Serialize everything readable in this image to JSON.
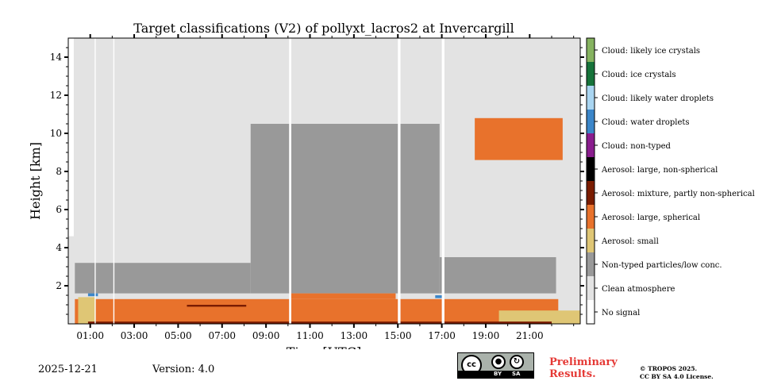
{
  "chart_data": {
    "type": "heatmap",
    "title": "Target classifications (V2) of pollyxt_lacros2 at Invercargill",
    "xlabel": "Time [UTC]",
    "ylabel": "Height [km]",
    "x_unit": "hours UTC",
    "xlim": [
      0,
      23.3
    ],
    "ylim": [
      0,
      15
    ],
    "xticks": [
      {
        "value": 1,
        "label": "01:00"
      },
      {
        "value": 3,
        "label": "03:00"
      },
      {
        "value": 5,
        "label": "05:00"
      },
      {
        "value": 7,
        "label": "07:00"
      },
      {
        "value": 9,
        "label": "09:00"
      },
      {
        "value": 11,
        "label": "11:00"
      },
      {
        "value": 13,
        "label": "13:00"
      },
      {
        "value": 15,
        "label": "15:00"
      },
      {
        "value": 17,
        "label": "17:00"
      },
      {
        "value": 19,
        "label": "19:00"
      },
      {
        "value": 21,
        "label": "21:00"
      }
    ],
    "yticks": [
      {
        "value": 2,
        "label": "2"
      },
      {
        "value": 4,
        "label": "4"
      },
      {
        "value": 6,
        "label": "6"
      },
      {
        "value": 8,
        "label": "8"
      },
      {
        "value": 10,
        "label": "10"
      },
      {
        "value": 12,
        "label": "12"
      },
      {
        "value": 14,
        "label": "14"
      }
    ],
    "classes": [
      {
        "code": 0,
        "label": "No signal",
        "color": "#ffffff"
      },
      {
        "code": 1,
        "label": "Clean atmosphere",
        "color": "#e3e3e3"
      },
      {
        "code": 2,
        "label": "Non-typed particles/low conc.",
        "color": "#999999"
      },
      {
        "code": 3,
        "label": "Aerosol: small",
        "color": "#dfc675"
      },
      {
        "code": 4,
        "label": "Aerosol: large, spherical",
        "color": "#e8722c"
      },
      {
        "code": 5,
        "label": "Aerosol: mixture, partly non-spherical",
        "color": "#7a1c00"
      },
      {
        "code": 6,
        "label": "Aerosol: large, non-spherical",
        "color": "#000000"
      },
      {
        "code": 7,
        "label": "Cloud: non-typed",
        "color": "#8a1d8e"
      },
      {
        "code": 8,
        "label": "Cloud: water droplets",
        "color": "#3b86c9"
      },
      {
        "code": 9,
        "label": "Cloud: likely water droplets",
        "color": "#a9d5f1"
      },
      {
        "code": 10,
        "label": "Cloud: ice crystals",
        "color": "#16733a"
      },
      {
        "code": 11,
        "label": "Cloud: likely ice crystals",
        "color": "#86b360"
      }
    ],
    "regions": [
      {
        "class": 1,
        "t0": 0,
        "t1": 23.3,
        "h0": 0,
        "h1": 15
      },
      {
        "class": 0,
        "t0": 0,
        "t1": 0.25,
        "h0": 4.6,
        "h1": 15
      },
      {
        "class": 2,
        "t0": 0.3,
        "t1": 8.3,
        "h0": 1.6,
        "h1": 3.2
      },
      {
        "class": 2,
        "t0": 8.3,
        "t1": 16.9,
        "h0": 1.6,
        "h1": 10.5
      },
      {
        "class": 2,
        "t0": 16.9,
        "t1": 22.2,
        "h0": 1.6,
        "h1": 3.5
      },
      {
        "class": 4,
        "t0": 0.3,
        "t1": 22.3,
        "h0": 0,
        "h1": 1.3
      },
      {
        "class": 4,
        "t0": 10.1,
        "t1": 14.9,
        "h0": 1.3,
        "h1": 1.6
      },
      {
        "class": 3,
        "t0": 0.45,
        "t1": 1.25,
        "h0": 0,
        "h1": 1.4
      },
      {
        "class": 3,
        "t0": 19.6,
        "t1": 23.3,
        "h0": 0,
        "h1": 0.7
      },
      {
        "class": 5,
        "t0": 5.4,
        "t1": 8.1,
        "h0": 0.9,
        "h1": 1.0
      },
      {
        "class": 5,
        "t0": 0.9,
        "t1": 22.0,
        "h0": 0,
        "h1": 0.12
      },
      {
        "class": 8,
        "t0": 0.9,
        "t1": 1.35,
        "h0": 1.45,
        "h1": 1.6
      },
      {
        "class": 8,
        "t0": 16.7,
        "t1": 17.1,
        "h0": 1.35,
        "h1": 1.5
      },
      {
        "class": 4,
        "t0": 18.5,
        "t1": 22.5,
        "h0": 8.6,
        "h1": 10.8
      },
      {
        "class": 0,
        "t0": 10.05,
        "t1": 10.15,
        "h0": 0,
        "h1": 15
      },
      {
        "class": 0,
        "t0": 15.0,
        "t1": 15.12,
        "h0": 0,
        "h1": 15
      },
      {
        "class": 0,
        "t0": 17.0,
        "t1": 17.12,
        "h0": 0,
        "h1": 15
      },
      {
        "class": 0,
        "t0": 2.05,
        "t1": 2.1,
        "h0": 0,
        "h1": 15
      },
      {
        "class": 0,
        "t0": 1.2,
        "t1": 1.25,
        "h0": 0,
        "h1": 15
      }
    ]
  },
  "footer": {
    "date": "2025-12-21",
    "version": "Version: 4.0",
    "preliminary_line1": "Preliminary",
    "preliminary_line2": "Results.",
    "copyright_line1": "© TROPOS 2025.",
    "copyright_line2": "CC BY SA 4.0 License.",
    "cc_text": "cc",
    "cc_by": "BY",
    "cc_sa": "SA"
  }
}
